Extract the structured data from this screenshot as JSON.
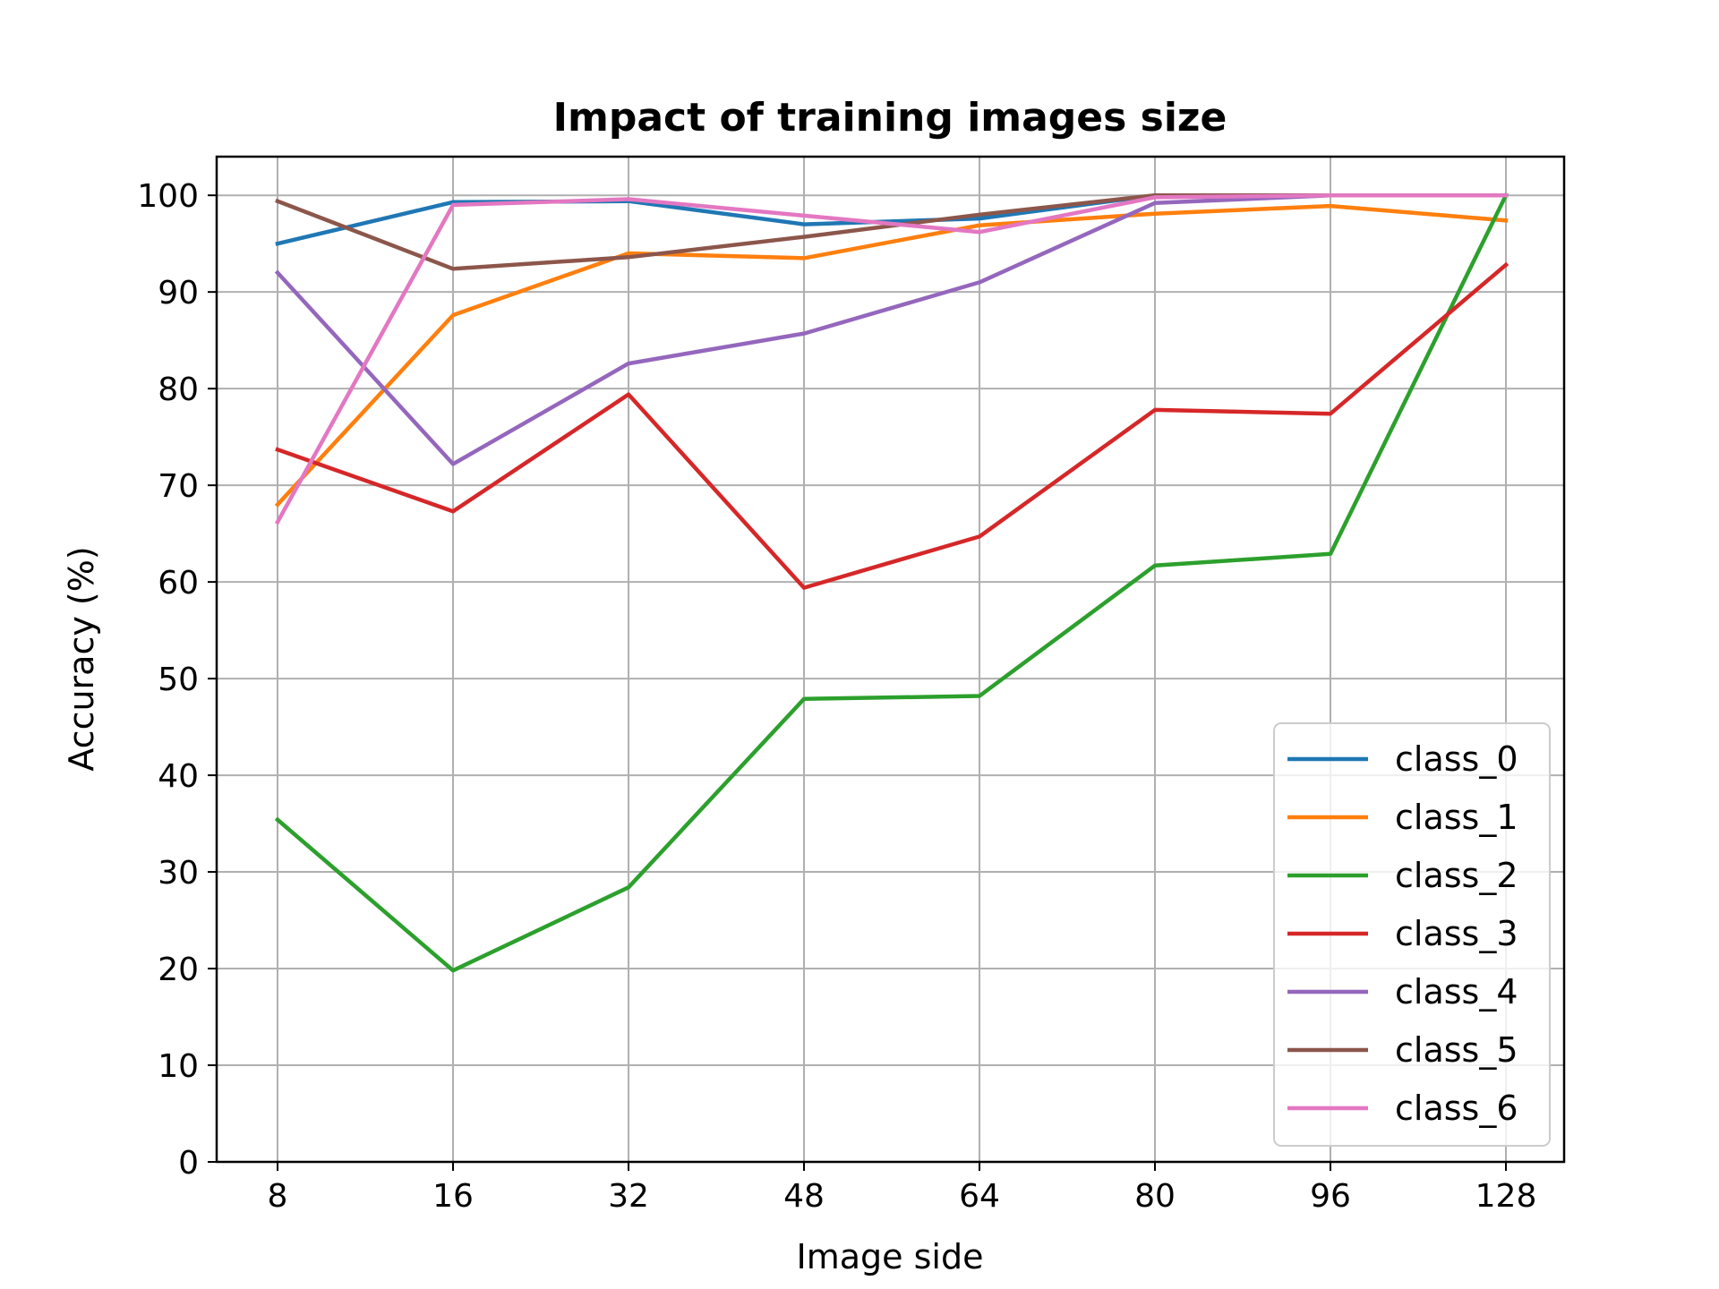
{
  "chart_data": {
    "type": "line",
    "title": "Impact of training images size",
    "xlabel": "Image side",
    "ylabel": "Accuracy (%)",
    "categories": [
      "8",
      "16",
      "32",
      "48",
      "64",
      "80",
      "96",
      "128"
    ],
    "ylim": [
      0,
      104
    ],
    "yticks": [
      0,
      10,
      20,
      30,
      40,
      50,
      60,
      70,
      80,
      90,
      100
    ],
    "grid": true,
    "legend_position": "lower right",
    "series": [
      {
        "name": "class_0",
        "color": "#1f77b4",
        "values": [
          95.0,
          99.3,
          99.4,
          97.0,
          97.6,
          100.0,
          100.0,
          100.0
        ]
      },
      {
        "name": "class_1",
        "color": "#ff7f0e",
        "values": [
          68.0,
          87.6,
          94.0,
          93.5,
          96.9,
          98.1,
          98.9,
          97.4
        ]
      },
      {
        "name": "class_2",
        "color": "#2ca02c",
        "values": [
          35.4,
          19.8,
          28.4,
          47.9,
          48.2,
          61.7,
          62.9,
          100.0
        ]
      },
      {
        "name": "class_3",
        "color": "#d62728",
        "values": [
          73.7,
          67.3,
          79.4,
          59.4,
          64.7,
          77.8,
          77.4,
          92.8
        ]
      },
      {
        "name": "class_4",
        "color": "#9467bd",
        "values": [
          92.0,
          72.2,
          82.6,
          85.7,
          91.0,
          99.2,
          100.0,
          100.0
        ]
      },
      {
        "name": "class_5",
        "color": "#8c564b",
        "values": [
          99.4,
          92.4,
          93.6,
          95.7,
          98.0,
          100.0,
          100.0,
          100.0
        ]
      },
      {
        "name": "class_6",
        "color": "#e377c2",
        "values": [
          66.2,
          99.0,
          99.6,
          97.9,
          96.2,
          99.8,
          100.0,
          100.0
        ]
      }
    ]
  }
}
